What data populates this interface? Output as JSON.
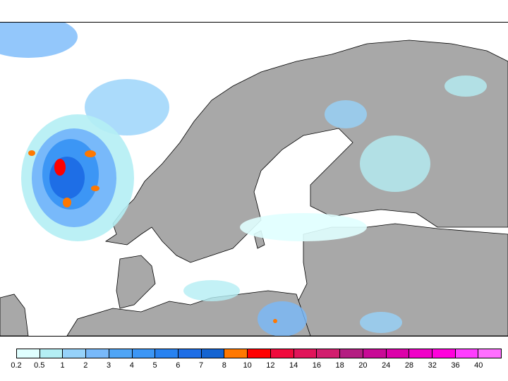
{
  "legend": {
    "labels": [
      "0.2",
      "0.5",
      "1",
      "2",
      "3",
      "4",
      "5",
      "6",
      "7",
      "8",
      "10",
      "12",
      "14",
      "16",
      "18",
      "20",
      "24",
      "28",
      "32",
      "36",
      "40"
    ],
    "colors": [
      "#e0ffff",
      "#b4eef4",
      "#96d2fa",
      "#78b9fa",
      "#50a5f5",
      "#3c96f5",
      "#2882f0",
      "#1e6ee6",
      "#1464d2",
      "#ff7800",
      "#ff0000",
      "#f00a3c",
      "#e1145a",
      "#d21e6e",
      "#b41e82",
      "#c80a96",
      "#dc00aa",
      "#f000c8",
      "#ff00dc",
      "#ff3cff",
      "#ff6eff"
    ]
  },
  "map": {
    "land_color": "#a8a8a8",
    "sea_color": "#ffffff",
    "border_color": "#000000"
  }
}
